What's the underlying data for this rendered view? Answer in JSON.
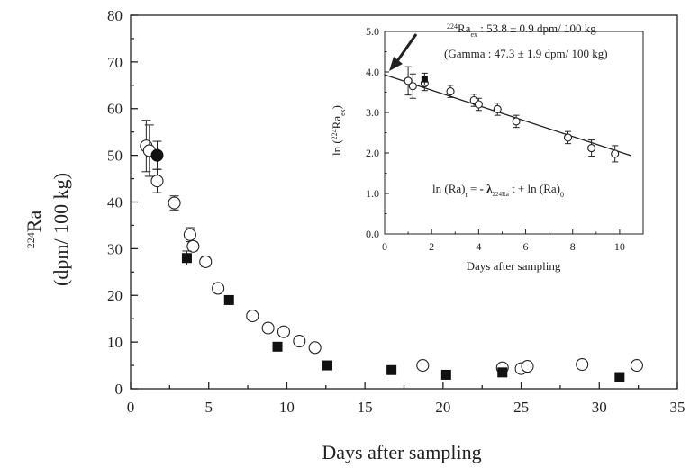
{
  "chart_data": [
    {
      "type": "scatter",
      "xlabel": "Days after sampling",
      "ylabel_line1": "224Ra",
      "ylabel_sup": "224",
      "ylabel_base": "Ra",
      "ylabel_line2": "(dpm/ 100 kg)",
      "xlim": [
        0,
        35
      ],
      "ylim": [
        0,
        80
      ],
      "xticks": [
        "0",
        "5",
        "10",
        "15",
        "20",
        "25",
        "30",
        "35"
      ],
      "yticks": [
        "0",
        "10",
        "20",
        "30",
        "40",
        "50",
        "60",
        "70",
        "80"
      ],
      "series": [
        {
          "marker": "open-circle",
          "points": [
            {
              "x": 1.0,
              "y": 52.0,
              "err": 5.5
            },
            {
              "x": 1.2,
              "y": 51.0,
              "err": 5.5
            },
            {
              "x": 1.7,
              "y": 44.5,
              "err": 2.5
            },
            {
              "x": 2.8,
              "y": 39.8,
              "err": 1.5
            },
            {
              "x": 3.8,
              "y": 33.0,
              "err": 1.5
            },
            {
              "x": 4.0,
              "y": 30.5,
              "err": 1.0
            },
            {
              "x": 4.8,
              "y": 27.2,
              "err": 1.0
            },
            {
              "x": 5.6,
              "y": 21.5,
              "err": 0
            },
            {
              "x": 7.8,
              "y": 15.6,
              "err": 0
            },
            {
              "x": 8.8,
              "y": 13.0,
              "err": 0
            },
            {
              "x": 9.8,
              "y": 12.2,
              "err": 0
            },
            {
              "x": 10.8,
              "y": 10.2,
              "err": 0
            },
            {
              "x": 11.8,
              "y": 8.8,
              "err": 0
            },
            {
              "x": 18.7,
              "y": 5.0,
              "err": 0
            },
            {
              "x": 23.8,
              "y": 4.5,
              "err": 0
            },
            {
              "x": 25.0,
              "y": 4.3,
              "err": 0
            },
            {
              "x": 25.4,
              "y": 4.8,
              "err": 0
            },
            {
              "x": 28.9,
              "y": 5.2,
              "err": 0
            },
            {
              "x": 32.4,
              "y": 5.0,
              "err": 0
            }
          ]
        },
        {
          "marker": "filled-circle",
          "points": [
            {
              "x": 1.7,
              "y": 50.0,
              "err": 3.0
            }
          ]
        },
        {
          "marker": "filled-square",
          "points": [
            {
              "x": 3.6,
              "y": 28.0,
              "err": 1.5
            },
            {
              "x": 6.3,
              "y": 19.0,
              "err": 0
            },
            {
              "x": 9.4,
              "y": 9.0,
              "err": 0
            },
            {
              "x": 12.6,
              "y": 5.0,
              "err": 0
            },
            {
              "x": 16.7,
              "y": 4.0,
              "err": 0
            },
            {
              "x": 20.2,
              "y": 3.0,
              "err": 0
            },
            {
              "x": 23.8,
              "y": 3.5,
              "err": 0
            },
            {
              "x": 31.3,
              "y": 2.5,
              "err": 0
            }
          ]
        }
      ]
    },
    {
      "type": "scatter",
      "xlabel": "Days after sampling",
      "ylabel_sup": "224",
      "ylabel_pre": "ln (",
      "ylabel_base": "Ra",
      "ylabel_sub": "ex",
      "ylabel_post": ")",
      "xlim": [
        0,
        11
      ],
      "ylim": [
        0,
        5
      ],
      "xticks": [
        "0",
        "2",
        "4",
        "6",
        "8",
        "10"
      ],
      "yticks": [
        "0.0",
        "1.0",
        "2.0",
        "3.0",
        "4.0",
        "5.0"
      ],
      "annotation_line1_sup": "224",
      "annotation_line1_base": "Ra",
      "annotation_line1_sub": "ex",
      "annotation_line1_rest": " : 53.8 ± 0.9 dpm/ 100 kg",
      "annotation_line2": "(Gamma : 47.3 ± 1.9 dpm/ 100 kg)",
      "equation_a": "ln (Ra)",
      "equation_a_sub": "t",
      "equation_b": " = ",
      "equation_minus": "-",
      "equation_lambda": " λ",
      "equation_lambda_sub": "224Ra",
      "equation_c": " t + ln (Ra)",
      "equation_c_sub": "0",
      "fit_line": {
        "x": [
          0,
          10.5
        ],
        "y": [
          3.93,
          1.93
        ]
      },
      "series": [
        {
          "marker": "open-circle",
          "points": [
            {
              "x": 1.0,
              "y": 3.78,
              "err": 0.35
            },
            {
              "x": 1.2,
              "y": 3.65,
              "err": 0.3
            },
            {
              "x": 1.7,
              "y": 3.72,
              "err": 0.18
            },
            {
              "x": 2.8,
              "y": 3.52,
              "err": 0.15
            },
            {
              "x": 3.8,
              "y": 3.3,
              "err": 0.15
            },
            {
              "x": 4.0,
              "y": 3.2,
              "err": 0.15
            },
            {
              "x": 4.8,
              "y": 3.08,
              "err": 0.15
            },
            {
              "x": 5.6,
              "y": 2.78,
              "err": 0.15
            },
            {
              "x": 7.8,
              "y": 2.38,
              "err": 0.15
            },
            {
              "x": 8.8,
              "y": 2.12,
              "err": 0.2
            },
            {
              "x": 9.8,
              "y": 1.98,
              "err": 0.2
            }
          ]
        },
        {
          "marker": "filled-square",
          "points": [
            {
              "x": 1.7,
              "y": 3.82,
              "err": 0.15
            }
          ]
        }
      ]
    }
  ]
}
